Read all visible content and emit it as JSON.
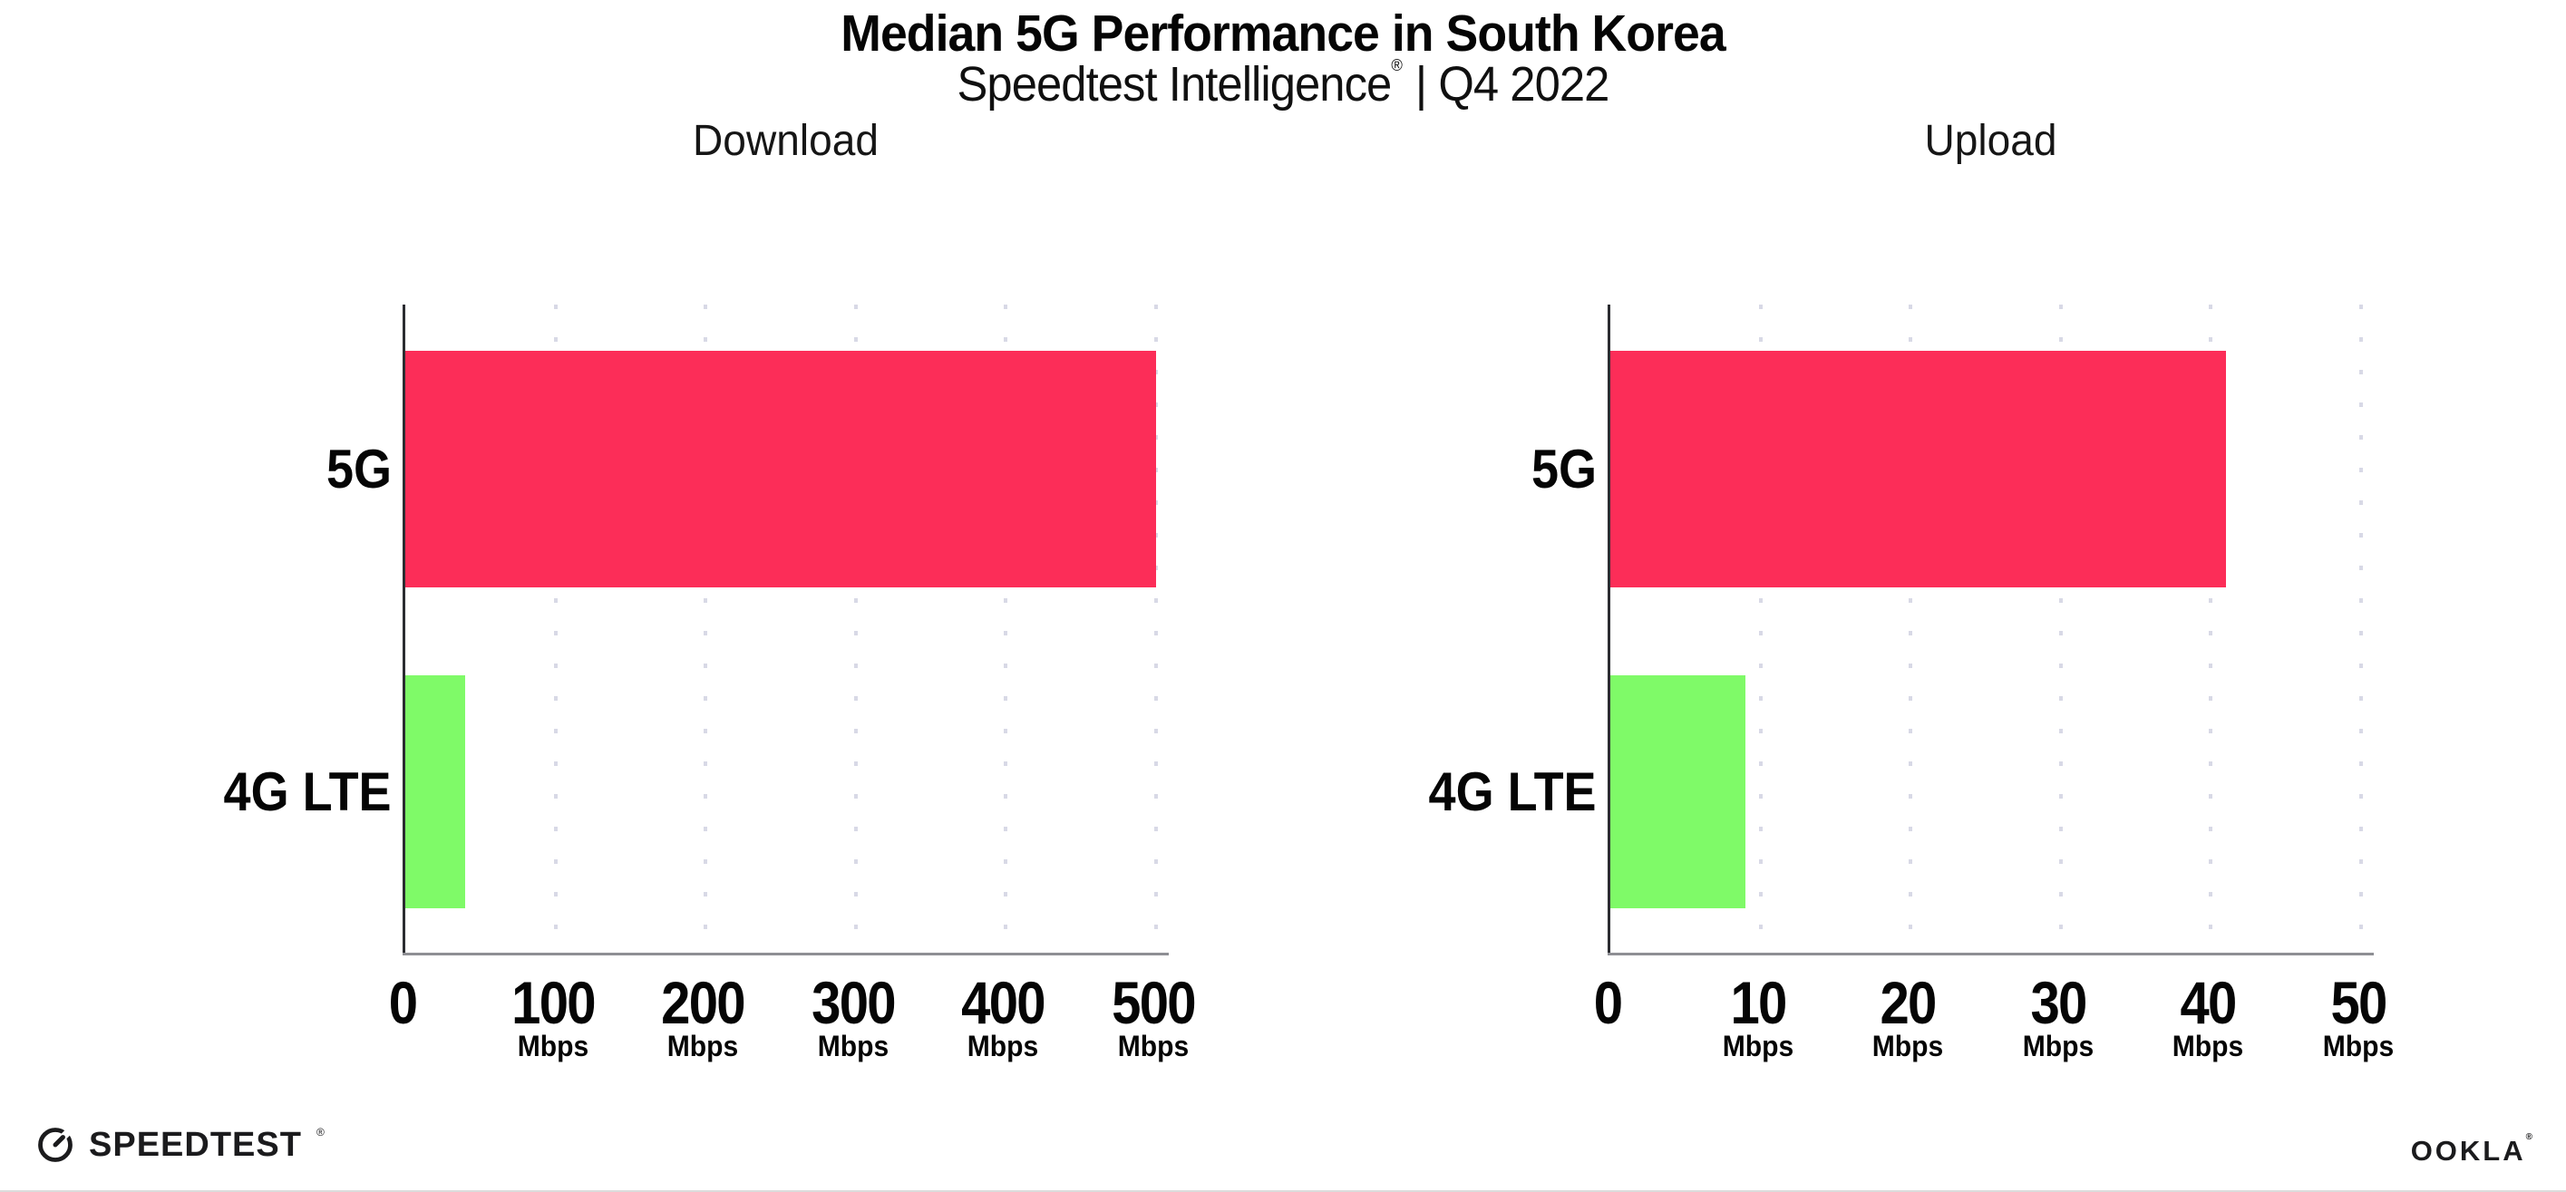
{
  "page": {
    "title": "Median 5G Performance in South Korea",
    "subtitle": {
      "brand": "Speedtest Intelligence",
      "reg": "®",
      "rest": "| Q4 2022"
    }
  },
  "colors": {
    "bar_5g": "#FC2D58",
    "bar_4g_lte": "#7FFA68",
    "y_axis": "#2B2C31",
    "x_axis": "#8E8F94",
    "gridline": "#D8D9E6",
    "background": "#FFFFFF"
  },
  "chart_data": [
    {
      "type": "bar",
      "orientation": "horizontal",
      "title": "Download",
      "categories": [
        "5G",
        "4G LTE"
      ],
      "values": [
        500,
        40
      ],
      "value_unit": "Mbps",
      "xlim": [
        0,
        500
      ],
      "xticks": [
        0,
        100,
        200,
        300,
        400,
        500
      ],
      "xtick_unit": "Mbps",
      "bar_colors": [
        "#FC2D58",
        "#7FFA68"
      ],
      "grid": "dotted vertical gridlines at each tick",
      "legend": "none"
    },
    {
      "type": "bar",
      "orientation": "horizontal",
      "title": "Upload",
      "categories": [
        "5G",
        "4G LTE"
      ],
      "values": [
        41,
        9
      ],
      "value_unit": "Mbps",
      "xlim": [
        0,
        50
      ],
      "xticks": [
        0,
        10,
        20,
        30,
        40,
        50
      ],
      "xtick_unit": "Mbps",
      "bar_colors": [
        "#FC2D58",
        "#7FFA68"
      ],
      "grid": "dotted vertical gridlines at each tick",
      "legend": "none"
    }
  ],
  "footer": {
    "speedtest": {
      "icon": "speedtest-gauge-icon",
      "text": "SPEEDTEST",
      "reg": "®"
    },
    "ookla": {
      "text": "OOKLA",
      "reg": "®"
    }
  }
}
